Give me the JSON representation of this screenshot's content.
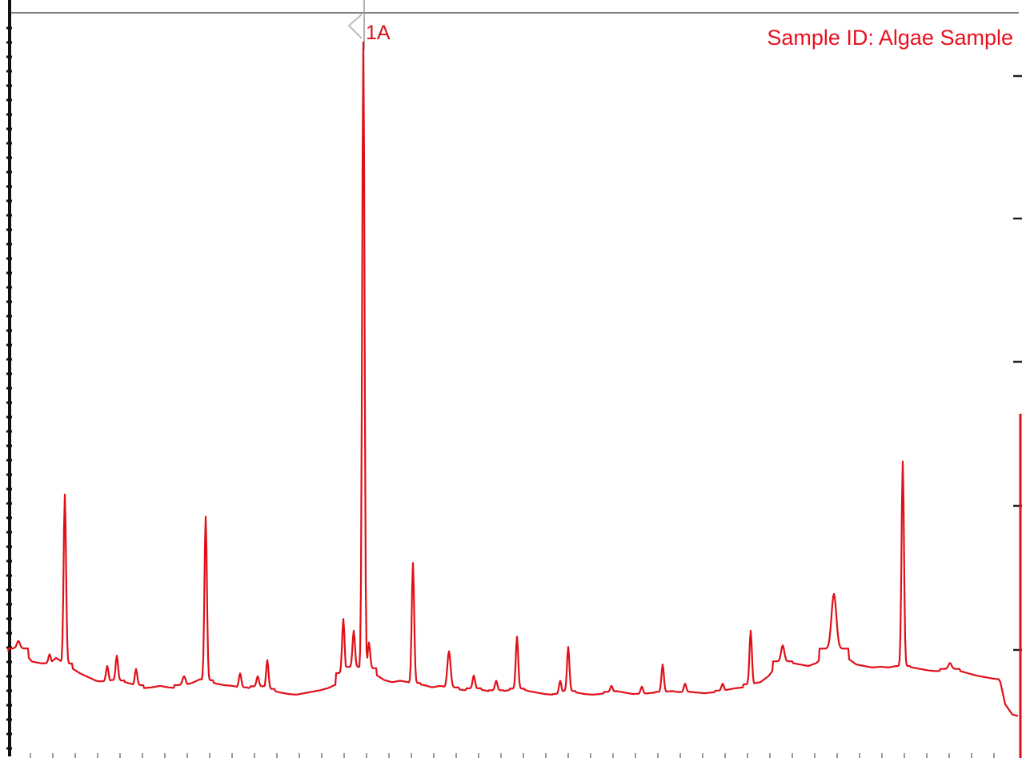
{
  "chart_data": {
    "type": "line",
    "title": "",
    "sample_label": "Sample ID: Algae Sample",
    "xlabel": "",
    "ylabel": "",
    "xlim": [
      0,
      1277
    ],
    "ylim": [
      0,
      100
    ],
    "grid": false,
    "legend": "none",
    "annotations": [
      {
        "text": "1A",
        "x": 455,
        "y": 96
      }
    ],
    "series": [
      {
        "color": "#e01018",
        "baseline": [
          [
            10,
            13.2
          ],
          [
            20,
            13.8
          ],
          [
            30,
            13.1
          ],
          [
            40,
            11.8
          ],
          [
            50,
            11.6
          ],
          [
            60,
            11.4
          ],
          [
            70,
            12.3
          ],
          [
            80,
            11.6
          ],
          [
            90,
            10.9
          ],
          [
            100,
            10.2
          ],
          [
            110,
            9.7
          ],
          [
            120,
            9.2
          ],
          [
            130,
            9.0
          ],
          [
            140,
            9.3
          ],
          [
            150,
            9.2
          ],
          [
            160,
            8.9
          ],
          [
            170,
            8.6
          ],
          [
            180,
            8.2
          ],
          [
            190,
            8.3
          ],
          [
            200,
            8.5
          ],
          [
            210,
            8.3
          ],
          [
            220,
            8.2
          ],
          [
            230,
            8.6
          ],
          [
            240,
            8.9
          ],
          [
            250,
            9.4
          ],
          [
            260,
            9.2
          ],
          [
            270,
            8.8
          ],
          [
            280,
            8.6
          ],
          [
            290,
            8.5
          ],
          [
            300,
            8.3
          ],
          [
            310,
            8.2
          ],
          [
            320,
            8.5
          ],
          [
            330,
            8.2
          ],
          [
            340,
            7.9
          ],
          [
            350,
            7.6
          ],
          [
            360,
            7.4
          ],
          [
            370,
            7.3
          ],
          [
            380,
            7.5
          ],
          [
            390,
            7.7
          ],
          [
            400,
            7.9
          ],
          [
            410,
            8.2
          ],
          [
            420,
            8.7
          ],
          [
            430,
            10.4
          ],
          [
            440,
            11.2
          ],
          [
            450,
            10.6
          ],
          [
            460,
            11.0
          ],
          [
            470,
            10.0
          ],
          [
            480,
            9.3
          ],
          [
            490,
            9.0
          ],
          [
            500,
            9.2
          ],
          [
            510,
            9.0
          ],
          [
            520,
            8.8
          ],
          [
            530,
            8.6
          ],
          [
            540,
            8.3
          ],
          [
            550,
            8.5
          ],
          [
            560,
            8.3
          ],
          [
            570,
            8.1
          ],
          [
            580,
            7.9
          ],
          [
            590,
            8.2
          ],
          [
            600,
            8.0
          ],
          [
            610,
            7.8
          ],
          [
            620,
            7.9
          ],
          [
            630,
            7.8
          ],
          [
            640,
            8.0
          ],
          [
            650,
            8.2
          ],
          [
            660,
            7.8
          ],
          [
            670,
            7.6
          ],
          [
            680,
            7.4
          ],
          [
            690,
            7.3
          ],
          [
            700,
            7.4
          ],
          [
            710,
            7.8
          ],
          [
            720,
            7.6
          ],
          [
            730,
            7.4
          ],
          [
            740,
            7.3
          ],
          [
            750,
            7.4
          ],
          [
            760,
            7.6
          ],
          [
            770,
            7.8
          ],
          [
            780,
            7.6
          ],
          [
            790,
            7.4
          ],
          [
            800,
            7.4
          ],
          [
            810,
            7.5
          ],
          [
            820,
            7.6
          ],
          [
            830,
            7.7
          ],
          [
            840,
            7.8
          ],
          [
            850,
            7.6
          ],
          [
            860,
            7.7
          ],
          [
            870,
            7.6
          ],
          [
            880,
            7.5
          ],
          [
            890,
            7.6
          ],
          [
            900,
            7.8
          ],
          [
            910,
            8.0
          ],
          [
            920,
            8.2
          ],
          [
            930,
            8.3
          ],
          [
            940,
            8.8
          ],
          [
            950,
            9.0
          ],
          [
            960,
            9.8
          ],
          [
            970,
            11.2
          ],
          [
            980,
            12.0
          ],
          [
            990,
            11.6
          ],
          [
            1000,
            11.4
          ],
          [
            1010,
            11.2
          ],
          [
            1020,
            11.6
          ],
          [
            1030,
            12.6
          ],
          [
            1040,
            13.6
          ],
          [
            1050,
            13.4
          ],
          [
            1060,
            12.2
          ],
          [
            1070,
            11.4
          ],
          [
            1080,
            11.2
          ],
          [
            1090,
            11.0
          ],
          [
            1100,
            11.1
          ],
          [
            1110,
            11.0
          ],
          [
            1120,
            11.2
          ],
          [
            1130,
            11.2
          ],
          [
            1140,
            11.0
          ],
          [
            1150,
            10.8
          ],
          [
            1160,
            10.6
          ],
          [
            1170,
            10.5
          ],
          [
            1180,
            10.6
          ],
          [
            1190,
            10.9
          ],
          [
            1200,
            10.5
          ],
          [
            1210,
            10.2
          ],
          [
            1220,
            9.9
          ],
          [
            1230,
            9.7
          ],
          [
            1240,
            9.5
          ],
          [
            1248,
            9.4
          ]
        ],
        "peaks": [
          [
            23,
            14.6,
            4
          ],
          [
            62,
            12.8,
            3
          ],
          [
            81,
            34.5,
            3
          ],
          [
            134,
            11.2,
            3
          ],
          [
            146,
            12.6,
            3
          ],
          [
            170,
            10.8,
            3
          ],
          [
            230,
            9.8,
            4
          ],
          [
            257,
            31.5,
            3
          ],
          [
            300,
            10.2,
            3
          ],
          [
            322,
            9.8,
            3
          ],
          [
            334,
            12.0,
            3
          ],
          [
            429,
            17.6,
            3
          ],
          [
            442,
            16.0,
            3
          ],
          [
            454,
            96.0,
            3
          ],
          [
            461,
            14.4,
            3
          ],
          [
            516,
            25.2,
            3
          ],
          [
            561,
            13.2,
            4
          ],
          [
            592,
            9.9,
            3
          ],
          [
            620,
            9.2,
            3
          ],
          [
            646,
            15.2,
            3
          ],
          [
            700,
            9.2,
            3
          ],
          [
            710,
            13.8,
            3
          ],
          [
            764,
            8.5,
            3
          ],
          [
            802,
            8.4,
            3
          ],
          [
            828,
            11.4,
            3
          ],
          [
            856,
            8.8,
            3
          ],
          [
            903,
            8.8,
            3
          ],
          [
            938,
            16.0,
            3
          ],
          [
            978,
            14.0,
            4
          ],
          [
            1042,
            21.0,
            6
          ],
          [
            1128,
            39.0,
            3
          ],
          [
            1187,
            11.6,
            4
          ]
        ],
        "end_tail": [
          [
            1250,
            9.0
          ],
          [
            1256,
            6.0
          ],
          [
            1265,
            4.6
          ],
          [
            1272,
            4.4
          ]
        ]
      }
    ],
    "right_edge_trace": {
      "x": 1275,
      "y_top": 45.5
    }
  }
}
